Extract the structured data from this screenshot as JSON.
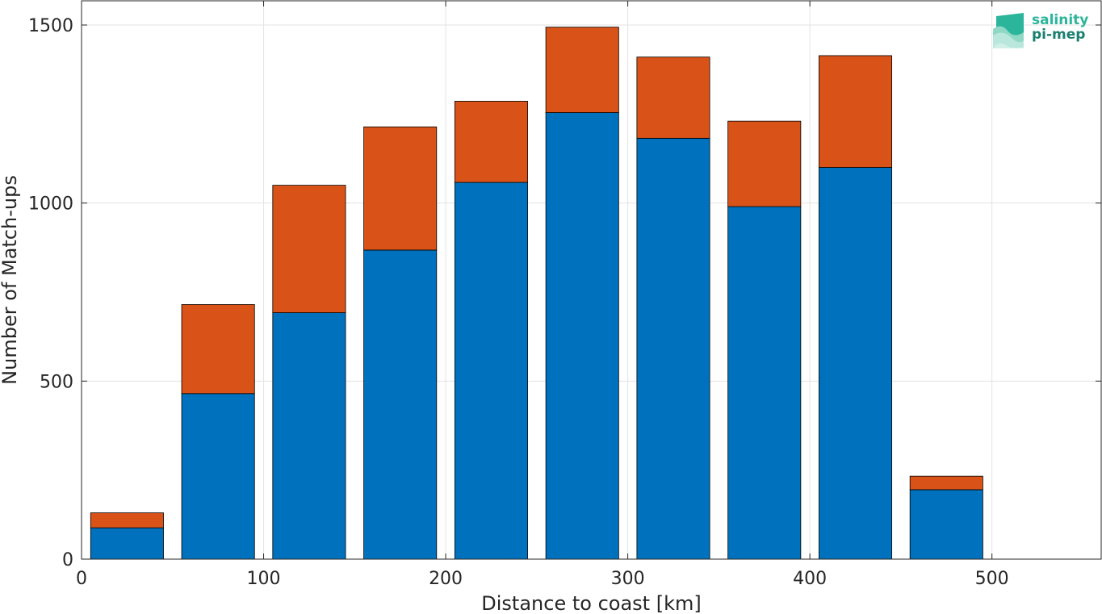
{
  "chart_data": {
    "type": "bar",
    "stacked": true,
    "x": [
      25,
      75,
      125,
      175,
      225,
      275,
      325,
      375,
      425,
      475
    ],
    "series": [
      {
        "color": "#0072BD",
        "values": [
          88,
          465,
          692,
          868,
          1058,
          1254,
          1182,
          990,
          1100,
          195
        ]
      },
      {
        "color": "#D95319",
        "values": [
          42,
          250,
          358,
          346,
          228,
          240,
          228,
          240,
          314,
          38
        ]
      }
    ],
    "xlabel": "Distance to coast [km]",
    "ylabel": "Number of Match-ups",
    "xlim": [
      0,
      560
    ],
    "ylim": [
      0,
      1500
    ],
    "xticks": [
      0,
      100,
      200,
      300,
      400,
      500
    ],
    "yticks": [
      0,
      500,
      1000,
      1500
    ],
    "grid": true
  },
  "logo": {
    "line1": "salinity",
    "line2": "pi-mep"
  }
}
